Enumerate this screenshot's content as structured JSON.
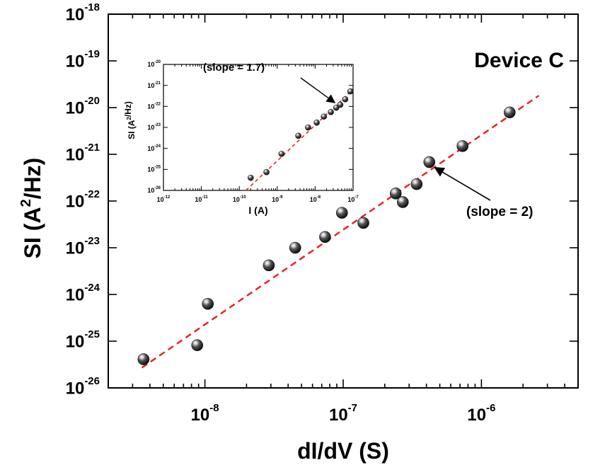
{
  "chart_data": [
    {
      "type": "scatter",
      "scale": "log-log",
      "title": "",
      "device_label": "Device C",
      "xlabel": "dI/dV (S)",
      "ylabel": {
        "main": "SI (A",
        "sup": "2",
        "tail": "/Hz)"
      },
      "xlim": [
        2e-09,
        5e-06
      ],
      "ylim": [
        1e-26,
        1e-18
      ],
      "x_ticks": [
        {
          "value": 1e-08,
          "base": "10",
          "exp": "-8"
        },
        {
          "value": 1e-07,
          "base": "10",
          "exp": "-7"
        },
        {
          "value": 1e-06,
          "base": "10",
          "exp": "-6"
        }
      ],
      "y_ticks": [
        {
          "value": 1e-26,
          "base": "10",
          "exp": "-26"
        },
        {
          "value": 1e-25,
          "base": "10",
          "exp": "-25"
        },
        {
          "value": 1e-24,
          "base": "10",
          "exp": "-24"
        },
        {
          "value": 1e-23,
          "base": "10",
          "exp": "-23"
        },
        {
          "value": 1e-22,
          "base": "10",
          "exp": "-22"
        },
        {
          "value": 1e-21,
          "base": "10",
          "exp": "-21"
        },
        {
          "value": 1e-20,
          "base": "10",
          "exp": "-20"
        },
        {
          "value": 1e-19,
          "base": "10",
          "exp": "-19"
        },
        {
          "value": 1e-18,
          "base": "10",
          "exp": "-18"
        }
      ],
      "points": [
        {
          "x": 3.6e-09,
          "y": 4.1e-26
        },
        {
          "x": 8.8e-09,
          "y": 8.2e-26
        },
        {
          "x": 1.05e-08,
          "y": 6.3e-25
        },
        {
          "x": 2.9e-08,
          "y": 4.2e-24
        },
        {
          "x": 4.5e-08,
          "y": 1e-23
        },
        {
          "x": 7.4e-08,
          "y": 1.7e-23
        },
        {
          "x": 9.8e-08,
          "y": 5.6e-23
        },
        {
          "x": 1.4e-07,
          "y": 3.4e-23
        },
        {
          "x": 2.4e-07,
          "y": 1.45e-22
        },
        {
          "x": 2.7e-07,
          "y": 9.5e-23
        },
        {
          "x": 3.4e-07,
          "y": 2.3e-22
        },
        {
          "x": 4.2e-07,
          "y": 6.8e-22
        },
        {
          "x": 7.3e-07,
          "y": 1.5e-21
        },
        {
          "x": 1.6e-06,
          "y": 7.9e-21
        }
      ],
      "fit_line": {
        "x": [
          3.5e-09,
          2.6e-06
        ],
        "y": [
          2.7e-26,
          1.8e-20
        ],
        "color": "#e8232a",
        "style": "dashed"
      },
      "annotation": {
        "text": "(slope = 2)",
        "arrow_to": {
          "x": 4.6e-07,
          "y": 5.2e-22
        }
      },
      "marker_color": "#222222"
    },
    {
      "type": "scatter",
      "scale": "log-log",
      "title": "",
      "xlabel": "I (A)",
      "ylabel": {
        "main": "SI (A",
        "sup": "2",
        "tail": "/Hz)"
      },
      "xlim": [
        1e-12,
        1e-07
      ],
      "ylim": [
        1e-26,
        1e-20
      ],
      "x_ticks": [
        {
          "value": 1e-12,
          "base": "10",
          "exp": "-12"
        },
        {
          "value": 1e-11,
          "base": "10",
          "exp": "-11"
        },
        {
          "value": 1e-10,
          "base": "10",
          "exp": "-10"
        },
        {
          "value": 1e-09,
          "base": "10",
          "exp": "-9"
        },
        {
          "value": 1e-08,
          "base": "10",
          "exp": "-8"
        },
        {
          "value": 1e-07,
          "base": "10",
          "exp": "-7"
        }
      ],
      "y_ticks": [
        {
          "value": 1e-26,
          "base": "10",
          "exp": "-26"
        },
        {
          "value": 1e-25,
          "base": "10",
          "exp": "-25"
        },
        {
          "value": 1e-24,
          "base": "10",
          "exp": "-24"
        },
        {
          "value": 1e-23,
          "base": "10",
          "exp": "-23"
        },
        {
          "value": 1e-22,
          "base": "10",
          "exp": "-22"
        },
        {
          "value": 1e-21,
          "base": "10",
          "exp": "-21"
        },
        {
          "value": 1e-20,
          "base": "10",
          "exp": "-20"
        }
      ],
      "points": [
        {
          "x": 2e-10,
          "y": 4e-26
        },
        {
          "x": 5.2e-10,
          "y": 7.4e-26
        },
        {
          "x": 1.3e-09,
          "y": 5.5e-25
        },
        {
          "x": 3.6e-09,
          "y": 4e-24
        },
        {
          "x": 6.5e-09,
          "y": 1e-23
        },
        {
          "x": 1.1e-08,
          "y": 1.7e-23
        },
        {
          "x": 1.7e-08,
          "y": 3.3e-23
        },
        {
          "x": 2.6e-08,
          "y": 5.4e-23
        },
        {
          "x": 3.6e-08,
          "y": 8.7e-23
        },
        {
          "x": 4.6e-08,
          "y": 1.2e-22
        },
        {
          "x": 6.2e-08,
          "y": 2.2e-22
        },
        {
          "x": 8.5e-08,
          "y": 5.2e-22
        }
      ],
      "fit_line": {
        "x": [
          1.5e-10,
          9.5e-08
        ],
        "y": [
          1e-26,
          6e-22
        ],
        "color": "#e8232a",
        "style": "dashed"
      },
      "annotation": {
        "text": "(slope = 1.7)",
        "arrow_to": {
          "x": 3.3e-08,
          "y": 1.5e-22
        }
      },
      "marker_color": "#222222"
    }
  ]
}
